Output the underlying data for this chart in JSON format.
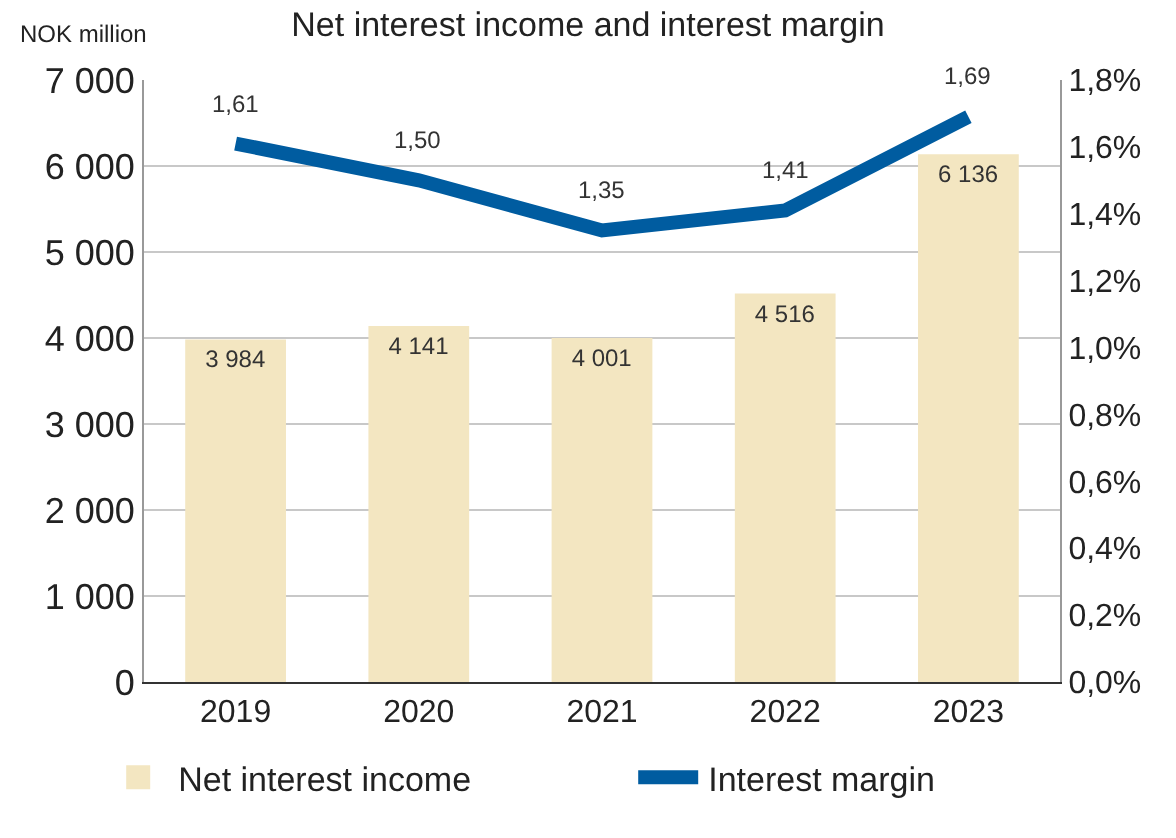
{
  "chart_data": {
    "type": "bar",
    "title": "Net interest income and interest margin",
    "ylabel": "NOK million",
    "categories": [
      "2019",
      "2020",
      "2021",
      "2022",
      "2023"
    ],
    "series": [
      {
        "name": "Net interest income",
        "color": "#f3e6c1",
        "values": [
          3984,
          4141,
          4001,
          4516,
          6136
        ],
        "value_labels": [
          "3 984",
          "4 141",
          "4 001",
          "4 516",
          "6 136"
        ]
      },
      {
        "name": "Interest margin",
        "type": "line",
        "axis": "y2",
        "color": "#005ca0",
        "marker": "none",
        "values": [
          1.61,
          1.5,
          1.35,
          1.41,
          1.69
        ],
        "value_labels": [
          "1,61",
          "1,50",
          "1,35",
          "1,41",
          "1,69"
        ]
      }
    ],
    "ylim": [
      0,
      7000
    ],
    "yticks": [
      {
        "value": 0,
        "label": "0"
      },
      {
        "value": 1000,
        "label": "1 000"
      },
      {
        "value": 2000,
        "label": "2 000"
      },
      {
        "value": 3000,
        "label": "3 000"
      },
      {
        "value": 4000,
        "label": "4 000"
      },
      {
        "value": 5000,
        "label": "5 000"
      },
      {
        "value": 6000,
        "label": "6 000"
      },
      {
        "value": 7000,
        "label": "7 000"
      }
    ],
    "y2lim": [
      0,
      1.8
    ],
    "y2ticks": [
      {
        "value": 0,
        "label": "0,0%"
      },
      {
        "value": 0.2,
        "label": "0,2%"
      },
      {
        "value": 0.4,
        "label": "0,4%"
      },
      {
        "value": 0.6,
        "label": "0,6%"
      },
      {
        "value": 0.8,
        "label": "0,8%"
      },
      {
        "value": 1.0,
        "label": "1,0%"
      },
      {
        "value": 1.2,
        "label": "1,2%"
      },
      {
        "value": 1.4,
        "label": "1,4%"
      },
      {
        "value": 1.6,
        "label": "1,6%"
      },
      {
        "value": 1.8,
        "label": "1,8%"
      }
    ],
    "grid": "y",
    "legend": "bottom"
  }
}
